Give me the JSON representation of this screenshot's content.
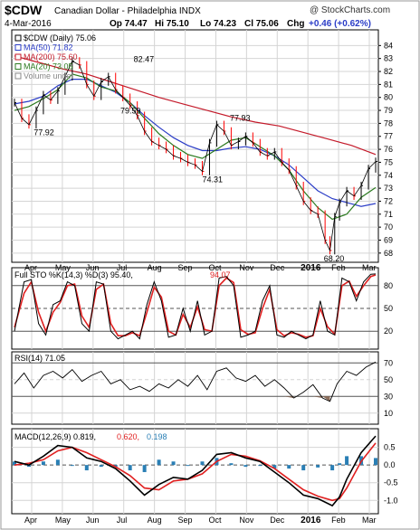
{
  "header": {
    "symbol": "$CDW",
    "name": "Canadian Dollar - Philadelphia INDX",
    "watermark": "@ StockCharts.com",
    "date": "4-Mar-2016",
    "quote": {
      "op": "Op 74.47",
      "hi": "Hi 75.10",
      "lo": "Lo 74.23",
      "cl": "Cl 75.06",
      "chg_prefix": "Chg",
      "chg": "+0.46 (+0.62%)"
    }
  },
  "colors": {
    "price": "#000000",
    "down": "#ff0000",
    "ma50": "#2b3dc7",
    "ma200": "#c41a2a",
    "ma20": "#2b7a1f",
    "sto_k": "#000000",
    "sto_d": "#e02020",
    "macd": "#000000",
    "signal": "#e02020",
    "hist": "#2a7fb5",
    "grid": "#d4d4d4",
    "axis": "#000000",
    "rsi_fill": "#8c6d5a"
  },
  "chart_data": [
    {
      "type": "line",
      "panel": "price",
      "title": "$CDW (Daily) 75.06",
      "yticks": [
        68,
        69,
        70,
        71,
        72,
        73,
        74,
        75,
        76,
        77,
        78,
        79,
        80,
        81,
        82,
        83,
        84
      ],
      "ylim": [
        67.5,
        85.0
      ],
      "x_ticks": [
        "Apr",
        "May",
        "Jun",
        "Jul",
        "Aug",
        "Sep",
        "Oct",
        "Nov",
        "Dec",
        "2016",
        "Feb",
        "Mar"
      ],
      "annotations": [
        {
          "text": "77.92",
          "x": 25,
          "y": 77.92
        },
        {
          "text": "82.47",
          "x": 108,
          "y": 82.47
        },
        {
          "text": "79.59",
          "x": 97,
          "y": 79.59
        },
        {
          "text": "77.93",
          "x": 188,
          "y": 77.93
        },
        {
          "text": "74.31",
          "x": 165,
          "y": 74.31
        },
        {
          "text": "68.20",
          "x": 266,
          "y": 68.2
        }
      ],
      "x_range": [
        0,
        300
      ],
      "series": [
        {
          "name": "$CDW (Daily) 75.06",
          "key": "price",
          "x": [
            0,
            6,
            12,
            18,
            24,
            30,
            36,
            42,
            48,
            54,
            60,
            66,
            72,
            78,
            84,
            90,
            96,
            102,
            108,
            114,
            120,
            126,
            132,
            138,
            144,
            150,
            156,
            162,
            168,
            174,
            180,
            186,
            192,
            198,
            204,
            210,
            216,
            222,
            228,
            234,
            240,
            246,
            252,
            258,
            262,
            266,
            270,
            276,
            282,
            288,
            294,
            300
          ],
          "y": [
            79.6,
            78.4,
            77.9,
            79.0,
            80.2,
            79.8,
            80.5,
            81.6,
            82.8,
            82.5,
            81.0,
            80.1,
            81.2,
            81.6,
            80.6,
            80.0,
            79.4,
            78.6,
            77.4,
            76.6,
            76.3,
            76.0,
            75.5,
            75.3,
            75.0,
            74.8,
            74.3,
            76.5,
            77.9,
            77.4,
            76.3,
            76.6,
            77.0,
            76.5,
            75.8,
            75.5,
            75.8,
            75.0,
            74.4,
            73.2,
            72.0,
            71.3,
            71.0,
            69.0,
            68.2,
            70.8,
            71.9,
            72.8,
            72.4,
            73.2,
            74.5,
            75.06
          ]
        },
        {
          "name": "MA(50) 71.82",
          "key": "ma50",
          "x": [
            0,
            12,
            24,
            36,
            48,
            60,
            72,
            84,
            96,
            108,
            120,
            132,
            144,
            156,
            168,
            180,
            192,
            204,
            216,
            228,
            240,
            252,
            264,
            276,
            288,
            300
          ],
          "y": [
            79.5,
            79.7,
            80.1,
            80.9,
            81.4,
            81.4,
            80.9,
            80.4,
            79.6,
            78.6,
            77.7,
            76.9,
            76.3,
            75.9,
            75.9,
            76.1,
            76.2,
            76.0,
            75.5,
            74.8,
            73.8,
            72.8,
            72.2,
            71.9,
            71.6,
            71.82
          ]
        },
        {
          "name": "MA(200) 75.60",
          "key": "ma200",
          "x": [
            0,
            20,
            40,
            60,
            80,
            100,
            120,
            140,
            160,
            180,
            200,
            220,
            240,
            260,
            280,
            300
          ],
          "y": [
            83.2,
            82.7,
            82.2,
            81.8,
            81.2,
            80.6,
            80.0,
            79.5,
            79.0,
            78.5,
            78.1,
            77.8,
            77.3,
            76.8,
            76.3,
            75.6
          ]
        },
        {
          "name": "MA(20) 73.05",
          "key": "ma20",
          "x": [
            0,
            12,
            24,
            36,
            48,
            60,
            72,
            84,
            96,
            108,
            120,
            132,
            144,
            156,
            168,
            180,
            192,
            204,
            216,
            228,
            240,
            252,
            264,
            276,
            288,
            300
          ],
          "y": [
            79.0,
            79.3,
            79.9,
            80.6,
            81.8,
            81.5,
            80.8,
            80.5,
            79.6,
            78.4,
            77.2,
            76.3,
            75.6,
            75.3,
            76.0,
            76.7,
            76.9,
            76.2,
            75.5,
            74.4,
            72.8,
            71.5,
            70.6,
            71.0,
            72.3,
            73.05
          ]
        }
      ],
      "legend": [
        "$CDW (Daily) 75.06",
        "MA(50) 71.82",
        "MA(200) 75.60",
        "MA(20) 73.05",
        "Volume undef"
      ],
      "legend_keys": [
        "price",
        "ma50",
        "ma200",
        "ma20",
        "volume"
      ],
      "legend_position": "top-left"
    },
    {
      "type": "line",
      "panel": "stochastic",
      "label_parts": [
        "Full STO %K(14,3) %D(3) 95.40,",
        "94.07"
      ],
      "yticks": [
        20,
        50,
        80
      ],
      "ylim": [
        0,
        100
      ],
      "reference_lines": [
        20,
        50,
        80
      ],
      "series": [
        {
          "name": "%K",
          "key": "k",
          "x": [
            0,
            8,
            14,
            20,
            26,
            32,
            38,
            44,
            50,
            56,
            62,
            68,
            74,
            80,
            86,
            92,
            98,
            104,
            110,
            116,
            122,
            128,
            134,
            140,
            146,
            152,
            158,
            164,
            170,
            176,
            182,
            188,
            194,
            200,
            206,
            212,
            218,
            224,
            230,
            236,
            242,
            248,
            254,
            260,
            266,
            272,
            278,
            284,
            290,
            296,
            300
          ],
          "y": [
            20,
            85,
            88,
            30,
            15,
            55,
            60,
            85,
            80,
            30,
            20,
            85,
            82,
            20,
            10,
            15,
            20,
            10,
            55,
            85,
            60,
            12,
            15,
            50,
            20,
            60,
            15,
            20,
            90,
            92,
            80,
            12,
            15,
            20,
            60,
            80,
            15,
            12,
            20,
            15,
            10,
            15,
            60,
            20,
            15,
            90,
            85,
            60,
            85,
            95,
            95.4
          ]
        },
        {
          "name": "%D",
          "key": "d",
          "x": [
            0,
            8,
            14,
            20,
            26,
            32,
            38,
            44,
            50,
            56,
            62,
            68,
            74,
            80,
            86,
            92,
            98,
            104,
            110,
            116,
            122,
            128,
            134,
            140,
            146,
            152,
            158,
            164,
            170,
            176,
            182,
            188,
            194,
            200,
            206,
            212,
            218,
            224,
            230,
            236,
            242,
            248,
            254,
            260,
            266,
            272,
            278,
            284,
            290,
            296,
            300
          ],
          "y": [
            25,
            70,
            85,
            45,
            20,
            45,
            58,
            80,
            82,
            40,
            25,
            75,
            82,
            30,
            14,
            14,
            18,
            14,
            45,
            78,
            65,
            20,
            15,
            42,
            25,
            52,
            22,
            20,
            80,
            90,
            84,
            22,
            16,
            18,
            50,
            75,
            22,
            14,
            18,
            16,
            12,
            14,
            50,
            26,
            16,
            80,
            86,
            66,
            80,
            92,
            94.07
          ]
        }
      ]
    },
    {
      "type": "line",
      "panel": "rsi",
      "label": "RSI(14) 71.05",
      "yticks": [
        10,
        30,
        50,
        70
      ],
      "ylim": [
        0,
        80
      ],
      "reference_lines": [
        30,
        70
      ],
      "series": [
        {
          "name": "RSI(14)",
          "key": "rsi",
          "x": [
            0,
            8,
            16,
            24,
            32,
            40,
            48,
            56,
            64,
            72,
            80,
            88,
            96,
            104,
            112,
            120,
            128,
            136,
            144,
            152,
            160,
            168,
            176,
            184,
            192,
            200,
            208,
            216,
            224,
            232,
            240,
            248,
            256,
            262,
            268,
            276,
            284,
            292,
            300
          ],
          "y": [
            45,
            58,
            40,
            55,
            60,
            52,
            62,
            48,
            55,
            60,
            45,
            50,
            38,
            42,
            36,
            45,
            40,
            50,
            42,
            55,
            38,
            60,
            64,
            52,
            48,
            55,
            42,
            50,
            40,
            28,
            35,
            44,
            28,
            24,
            45,
            60,
            55,
            65,
            71.05
          ]
        }
      ]
    },
    {
      "type": "bar",
      "panel": "macd",
      "label_parts": [
        "MACD(12,26,9) 0.819,",
        "0.620,",
        "0.198"
      ],
      "yticks": [
        -1.0,
        -0.5,
        0.0,
        0.5
      ],
      "ylim": [
        -1.3,
        0.95
      ],
      "series": [
        {
          "name": "MACD",
          "key": "macd",
          "x": [
            0,
            12,
            24,
            36,
            48,
            60,
            72,
            84,
            96,
            108,
            120,
            132,
            144,
            156,
            168,
            180,
            192,
            204,
            216,
            228,
            240,
            252,
            264,
            270,
            276,
            288,
            300
          ],
          "y": [
            0.1,
            0.0,
            0.25,
            0.55,
            0.5,
            0.2,
            0.1,
            -0.1,
            -0.45,
            -0.85,
            -0.55,
            -0.35,
            -0.4,
            -0.15,
            0.3,
            0.35,
            0.2,
            0.1,
            -0.2,
            -0.5,
            -0.85,
            -0.95,
            -1.15,
            -0.9,
            -0.4,
            0.35,
            0.819
          ]
        },
        {
          "name": "Signal",
          "key": "signal",
          "x": [
            0,
            12,
            24,
            36,
            48,
            60,
            72,
            84,
            96,
            108,
            120,
            132,
            144,
            156,
            168,
            180,
            192,
            204,
            216,
            228,
            240,
            252,
            264,
            270,
            276,
            288,
            300
          ],
          "y": [
            0.0,
            0.05,
            0.15,
            0.4,
            0.5,
            0.35,
            0.15,
            -0.05,
            -0.3,
            -0.65,
            -0.7,
            -0.45,
            -0.4,
            -0.25,
            0.1,
            0.3,
            0.25,
            0.12,
            -0.1,
            -0.4,
            -0.7,
            -0.88,
            -1.0,
            -0.95,
            -0.65,
            0.1,
            0.62
          ]
        },
        {
          "name": "Histogram",
          "key": "hist",
          "x": [
            0,
            12,
            24,
            36,
            48,
            60,
            72,
            84,
            96,
            108,
            120,
            132,
            144,
            156,
            168,
            180,
            192,
            204,
            216,
            228,
            240,
            252,
            264,
            270,
            276,
            288,
            300
          ],
          "y": [
            0.1,
            -0.05,
            0.1,
            0.15,
            0.0,
            -0.15,
            -0.05,
            -0.05,
            -0.15,
            -0.2,
            0.15,
            0.1,
            0.0,
            0.1,
            0.2,
            0.05,
            -0.05,
            -0.02,
            -0.1,
            -0.1,
            -0.15,
            -0.07,
            -0.15,
            0.05,
            0.25,
            0.25,
            0.198
          ]
        }
      ]
    }
  ]
}
